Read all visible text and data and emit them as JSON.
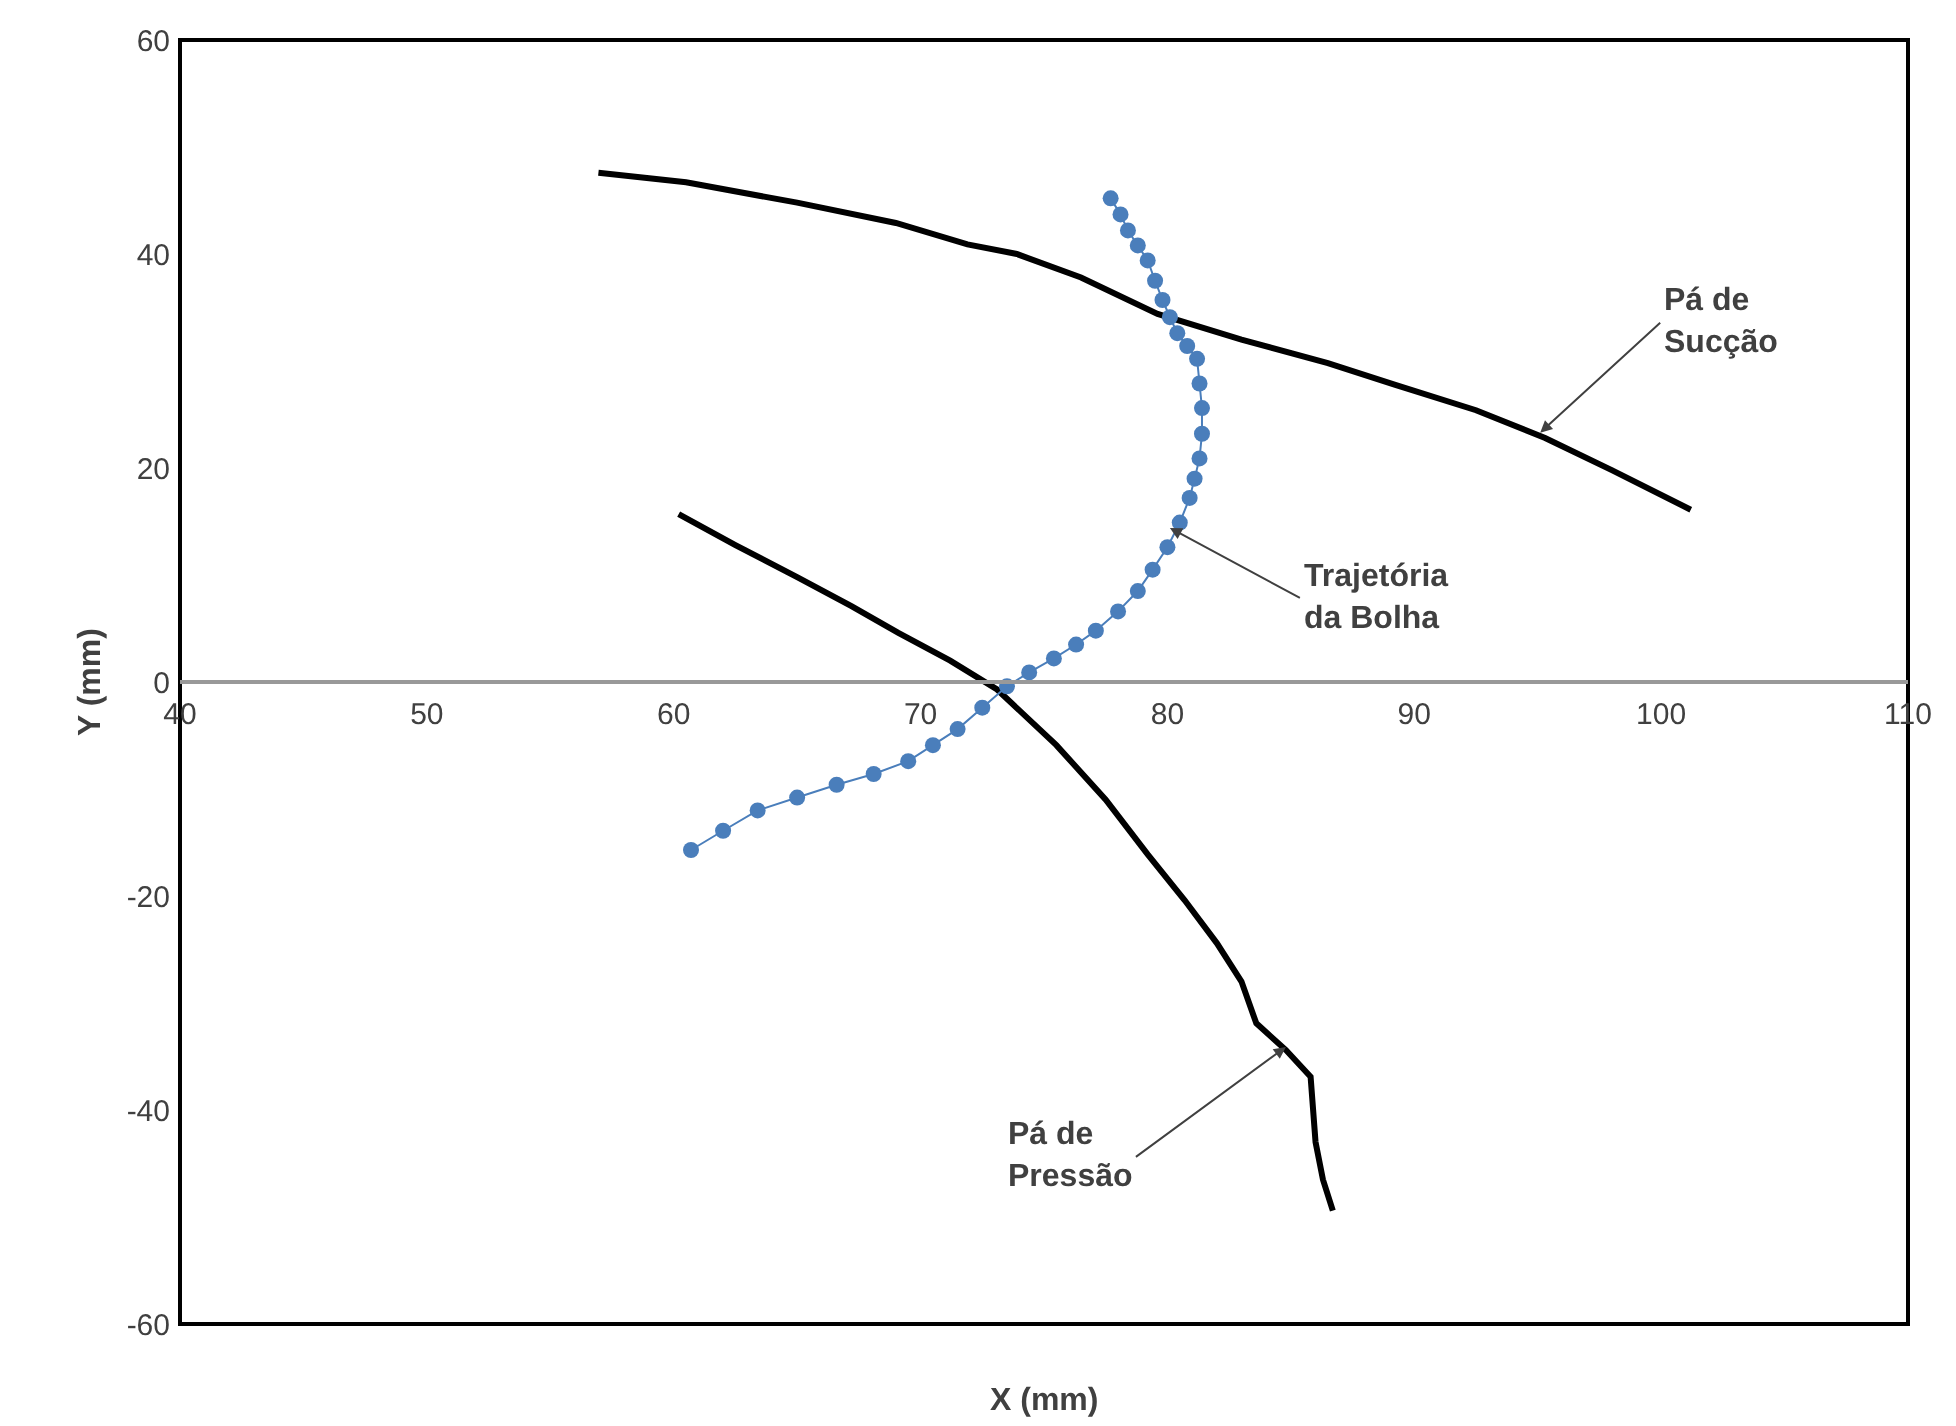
{
  "chart_data": {
    "type": "line",
    "xlabel": "X (mm)",
    "ylabel": "Y (mm)",
    "xlim": [
      40,
      110
    ],
    "ylim": [
      -60,
      60
    ],
    "xticks": [
      40,
      50,
      60,
      70,
      80,
      90,
      100,
      110
    ],
    "yticks": [
      -60,
      -40,
      -20,
      0,
      20,
      40,
      60
    ],
    "series": [
      {
        "color": "#000000",
        "marker": "none",
        "x": [
          56.95,
          60.5,
          65.0,
          69.0,
          71.9,
          73.9,
          76.5,
          79.6,
          83.0,
          86.5,
          89.2,
          92.5,
          95.3,
          98.0,
          101.2
        ],
        "values": [
          47.6,
          46.7,
          44.8,
          42.9,
          40.9,
          40.0,
          37.8,
          34.4,
          32.0,
          29.8,
          27.8,
          25.4,
          22.8,
          19.8,
          16.1
        ]
      },
      {
        "color": "#000000",
        "marker": "none",
        "x": [
          60.2,
          62.5,
          65.0,
          67.2,
          69.1,
          71.2,
          73.1,
          75.5,
          77.5,
          79.2,
          80.7,
          82.0,
          83.0,
          83.6,
          84.8,
          85.8,
          86.0,
          86.3,
          86.7
        ],
        "values": [
          15.7,
          12.8,
          9.8,
          7.1,
          4.6,
          2.0,
          -0.7,
          -5.9,
          -11.0,
          -16.1,
          -20.4,
          -24.4,
          -28.0,
          -31.9,
          -34.4,
          -36.9,
          -43.0,
          -46.5,
          -49.4
        ]
      },
      {
        "color": "#4a7ebb",
        "marker": "circle",
        "x": [
          77.7,
          78.1,
          78.4,
          78.8,
          79.2,
          79.5,
          79.8,
          80.1,
          80.4,
          80.8,
          81.2,
          81.3,
          81.4,
          81.4,
          81.3,
          81.1,
          80.9,
          80.5,
          80.0,
          79.4,
          78.8,
          78.0,
          77.1,
          76.3,
          75.4,
          74.4,
          73.5,
          72.5,
          71.5,
          70.5,
          69.5,
          68.1,
          66.6,
          65.0,
          63.4,
          62.0,
          60.7
        ],
        "values": [
          45.2,
          43.7,
          42.2,
          40.8,
          39.4,
          37.5,
          35.7,
          34.1,
          32.6,
          31.4,
          30.2,
          27.9,
          25.6,
          23.2,
          20.9,
          19.0,
          17.2,
          14.9,
          12.6,
          10.5,
          8.5,
          6.6,
          4.8,
          3.5,
          2.2,
          0.9,
          -0.4,
          -2.4,
          -4.4,
          -5.9,
          -7.4,
          -8.6,
          -9.6,
          -10.8,
          -12.0,
          -13.9,
          -15.7
        ]
      }
    ],
    "annotations": [
      {
        "text": "Pá de\nSucção",
        "x": 95.1,
        "y": 23.3
      },
      {
        "text": "Trajetória\nda Bolha",
        "x": 80.1,
        "y": 14.4
      },
      {
        "text": "Pá de\nPressão",
        "x": 84.8,
        "y": -34.1
      }
    ]
  }
}
